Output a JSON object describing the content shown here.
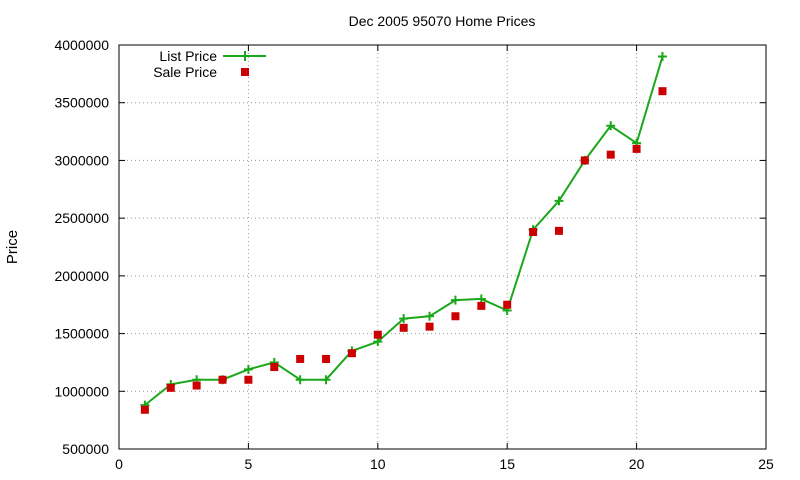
{
  "chart_data": {
    "type": "line",
    "title": "Dec 2005 95070 Home Prices",
    "xlabel": "",
    "ylabel": "Price",
    "xlim": [
      0,
      25
    ],
    "ylim": [
      500000,
      4000000
    ],
    "xticks": [
      0,
      5,
      10,
      15,
      20,
      25
    ],
    "yticks": [
      500000,
      1000000,
      1500000,
      2000000,
      2500000,
      3000000,
      3500000,
      4000000
    ],
    "grid": true,
    "legend_position": "top-left",
    "series": [
      {
        "name": "List Price",
        "style": "line-with-plus-markers",
        "color": "#1aa81a",
        "x": [
          1,
          2,
          3,
          4,
          5,
          6,
          7,
          8,
          9,
          10,
          11,
          12,
          13,
          14,
          15,
          16,
          17,
          18,
          19,
          20,
          21
        ],
        "y": [
          880000,
          1060000,
          1100000,
          1100000,
          1190000,
          1250000,
          1100000,
          1100000,
          1350000,
          1430000,
          1630000,
          1650000,
          1790000,
          1800000,
          1700000,
          2400000,
          2650000,
          3000000,
          3300000,
          3150000,
          3900000
        ]
      },
      {
        "name": "Sale Price",
        "style": "square-markers",
        "color": "#cc0000",
        "x": [
          1,
          2,
          3,
          4,
          5,
          6,
          7,
          8,
          9,
          10,
          11,
          12,
          13,
          14,
          15,
          16,
          17,
          18,
          19,
          20,
          21
        ],
        "y": [
          840000,
          1030000,
          1050000,
          1100000,
          1100000,
          1210000,
          1280000,
          1280000,
          1330000,
          1490000,
          1550000,
          1560000,
          1650000,
          1740000,
          1750000,
          2380000,
          2390000,
          3000000,
          3050000,
          3100000,
          3600000
        ]
      }
    ]
  }
}
